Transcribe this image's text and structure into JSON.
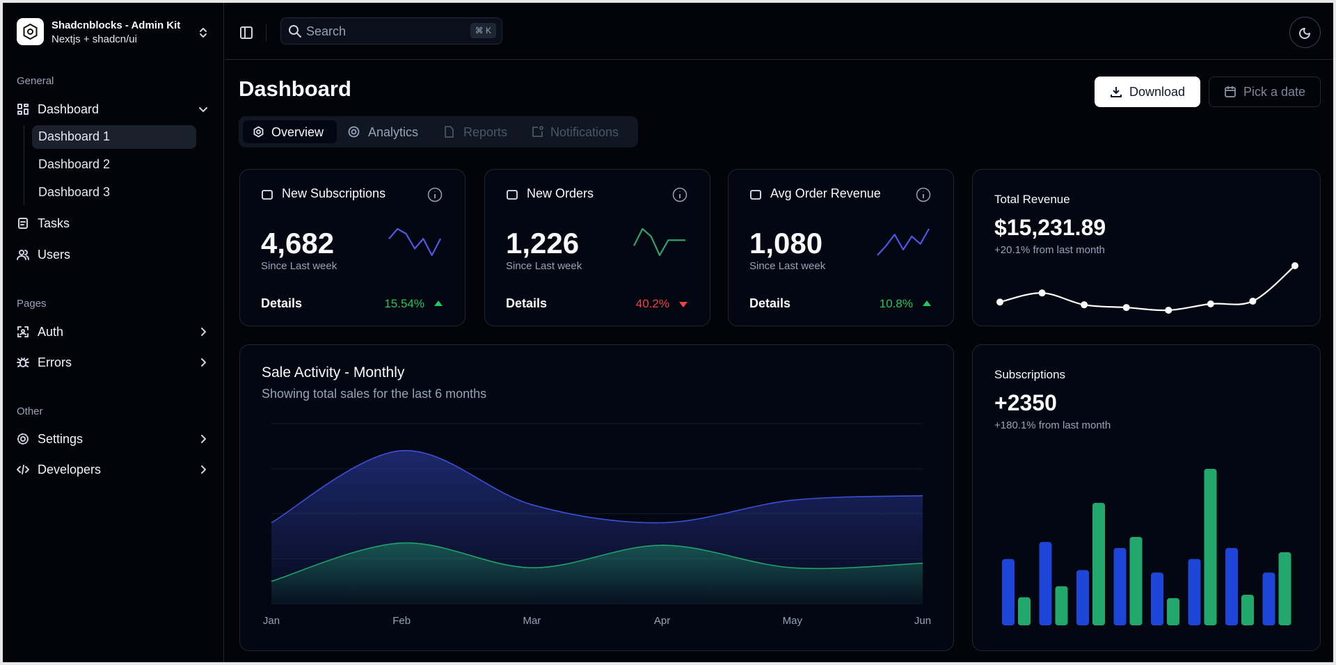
{
  "sidebar": {
    "brand": {
      "title": "Shadcnblocks - Admin Kit",
      "subtitle": "Nextjs + shadcn/ui"
    },
    "groups": [
      {
        "label": "General",
        "items": [
          {
            "label": "Dashboard",
            "children": [
              "Dashboard 1",
              "Dashboard 2",
              "Dashboard 3"
            ]
          },
          {
            "label": "Tasks"
          },
          {
            "label": "Users"
          }
        ]
      },
      {
        "label": "Pages",
        "items": [
          {
            "label": "Auth"
          },
          {
            "label": "Errors"
          }
        ]
      },
      {
        "label": "Other",
        "items": [
          {
            "label": "Settings"
          },
          {
            "label": "Developers"
          }
        ]
      }
    ]
  },
  "header": {
    "search_placeholder": "Search",
    "shortcut": "⌘ K"
  },
  "page": {
    "title": "Dashboard",
    "buttons": [
      "Download",
      "Pick a date"
    ],
    "tabs": [
      "Overview",
      "Analytics",
      "Reports",
      "Notifications"
    ]
  },
  "stats": [
    {
      "title": "New Subscriptions",
      "value": "4,682",
      "caption": "Since Last week",
      "link": "Details",
      "change": "15.54%",
      "trend": "up",
      "chart": {
        "type": "line",
        "color": "#5258e0",
        "values": [
          60,
          90,
          75,
          30,
          60,
          10,
          60
        ]
      }
    },
    {
      "title": "New Orders",
      "value": "1,226",
      "caption": "Since Last week",
      "link": "Details",
      "change": "40.2%",
      "trend": "down",
      "chart": {
        "type": "line",
        "color": "#2fa36b",
        "values": [
          45,
          90,
          70,
          20,
          60,
          60,
          60
        ]
      }
    },
    {
      "title": "Avg Order Revenue",
      "value": "1,080",
      "caption": "Since Last week",
      "link": "Details",
      "change": "10.8%",
      "trend": "up",
      "chart": {
        "type": "line",
        "color": "#4f55e6",
        "values": [
          10,
          35,
          65,
          25,
          60,
          40,
          80
        ]
      }
    }
  ],
  "revenue": {
    "title": "Total Revenue",
    "value": "$15,231.89",
    "caption": "+20.1% from last month",
    "chart": {
      "type": "line",
      "color": "#ffffff",
      "smooth": true,
      "markers": true,
      "values": [
        20,
        30,
        17,
        14,
        11,
        18,
        21,
        60
      ]
    }
  },
  "sales": {
    "title": "Sale Activity - Monthly",
    "subtitle": "Showing total sales for the last 6 months",
    "chart": {
      "type": "area",
      "categories": [
        "Jan",
        "Feb",
        "Mar",
        "Apr",
        "May",
        "Jun"
      ],
      "ylim": [
        0,
        4
      ],
      "yticks": [
        0,
        1,
        2,
        3,
        4
      ],
      "grid": true,
      "series": [
        {
          "color": "#3b4fd8",
          "values": [
            1.8,
            3.4,
            2.2,
            1.8,
            2.3,
            2.4
          ]
        },
        {
          "color": "#22a06b",
          "values": [
            0.5,
            1.35,
            0.8,
            1.3,
            0.8,
            0.9
          ]
        }
      ]
    }
  },
  "subscriptions": {
    "title": "Subscriptions",
    "value": "+2350",
    "caption": "+180.1% from last month",
    "chart": {
      "type": "bar",
      "series": [
        {
          "color": "#1d46d8",
          "values": [
            78,
            98,
            65,
            91,
            62,
            78,
            91,
            62
          ]
        },
        {
          "color": "#22a86c",
          "values": [
            33,
            46,
            144,
            104,
            32,
            184,
            36,
            86
          ]
        }
      ]
    }
  }
}
